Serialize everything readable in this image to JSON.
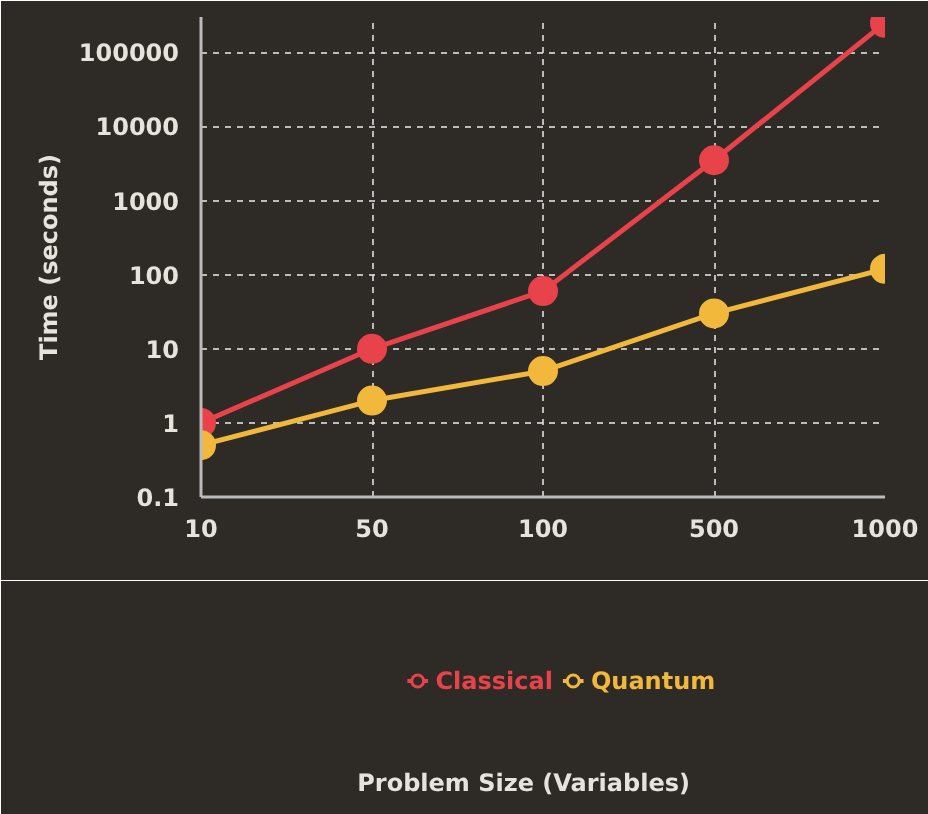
{
  "chart_data": {
    "type": "line",
    "annotations": [
      "Problem Size (Variables)"
    ],
    "ylabel": "Time (seconds)",
    "categories": [
      "10",
      "50",
      "100",
      "500",
      "1000"
    ],
    "log": "y",
    "ylim": [
      0.1,
      300000
    ],
    "yticks": [
      0.1,
      1,
      10,
      100,
      1000,
      10000,
      100000
    ],
    "grid": true,
    "legend": "bottom",
    "marker": "circle",
    "line_style": "solid",
    "series": [
      {
        "name": "Classical",
        "color": "#e8424a",
        "values": [
          1,
          10,
          60,
          3500,
          250000
        ]
      },
      {
        "name": "Quantum",
        "color": "#f2b83c",
        "values": [
          0.5,
          2,
          5,
          30,
          120
        ]
      }
    ]
  }
}
